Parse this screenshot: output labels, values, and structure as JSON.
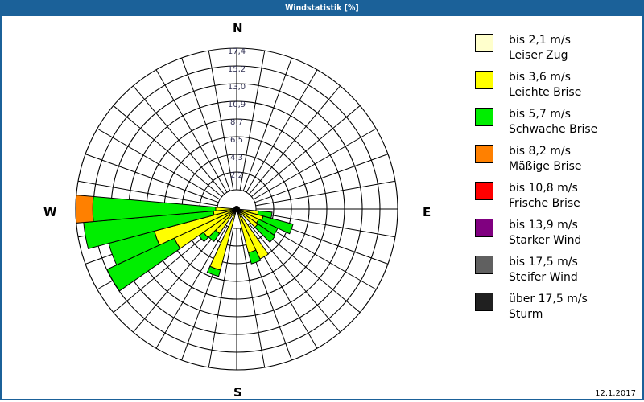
{
  "window": {
    "title": "Windstatistik [%]"
  },
  "compass": {
    "n": "N",
    "e": "E",
    "s": "S",
    "w": "W"
  },
  "footer": {
    "date": "12.1.2017"
  },
  "legend": [
    {
      "range": "bis 2,1 m/s",
      "name": "Leiser Zug",
      "color": "#ffffcc"
    },
    {
      "range": "bis 3,6 m/s",
      "name": "Leichte Brise",
      "color": "#ffff00"
    },
    {
      "range": "bis 5,7 m/s",
      "name": "Schwache Brise",
      "color": "#00ee00"
    },
    {
      "range": "bis 8,2 m/s",
      "name": "Mäßige Brise",
      "color": "#ff8000"
    },
    {
      "range": "bis 10,8 m/s",
      "name": "Frische Brise",
      "color": "#ff0000"
    },
    {
      "range": "bis 13,9 m/s",
      "name": "Starker Wind",
      "color": "#800080"
    },
    {
      "range": "bis 17,5 m/s",
      "name": "Steifer Wind",
      "color": "#606060"
    },
    {
      "range": "über 17,5 m/s",
      "name": "Sturm",
      "color": "#202020"
    }
  ],
  "chart_data": {
    "type": "wind-rose",
    "title": "Windstatistik [%]",
    "ring_labels": [
      "2,2",
      "4,3",
      "6,5",
      "8,7",
      "10,9",
      "13,0",
      "15,2",
      "17,4"
    ],
    "rmax": 17.4,
    "sector_width_deg": 10,
    "legend": [
      "bis 2,1 m/s Leiser Zug",
      "bis 3,6 m/s Leichte Brise",
      "bis 5,7 m/s Schwache Brise",
      "bis 8,2 m/s Mäßige Brise",
      "bis 10,8 m/s Frische Brise",
      "bis 13,9 m/s Starker Wind",
      "bis 17,5 m/s Steifer Wind",
      "über 17,5 m/s Sturm"
    ],
    "series_order": [
      "bis 3,6 m/s",
      "bis 5,7 m/s",
      "bis 8,2 m/s"
    ],
    "sectors": [
      {
        "dir": 100,
        "segments": [
          0.3,
          1.7,
          0
        ]
      },
      {
        "dir": 110,
        "segments": [
          1.0,
          3.8,
          0
        ]
      },
      {
        "dir": 120,
        "segments": [
          0.6,
          2.6,
          0
        ]
      },
      {
        "dir": 130,
        "segments": [
          0.8,
          2.6,
          0
        ]
      },
      {
        "dir": 150,
        "segments": [
          4.4,
          0,
          0
        ]
      },
      {
        "dir": 160,
        "segments": [
          3.2,
          1.4,
          0
        ]
      },
      {
        "dir": 200,
        "segments": [
          5.4,
          0.8,
          0
        ]
      },
      {
        "dir": 220,
        "segments": [
          1.3,
          1.2,
          0
        ]
      },
      {
        "dir": 230,
        "segments": [
          2.6,
          0.7,
          0
        ]
      },
      {
        "dir": 240,
        "segments": [
          6.1,
          9.1,
          0
        ]
      },
      {
        "dir": 250,
        "segments": [
          8.1,
          5.8,
          0
        ]
      },
      {
        "dir": 260,
        "segments": [
          0.5,
          16.0,
          0
        ]
      },
      {
        "dir": 270,
        "segments": [
          0.2,
          15.1,
          2.1
        ]
      }
    ]
  }
}
